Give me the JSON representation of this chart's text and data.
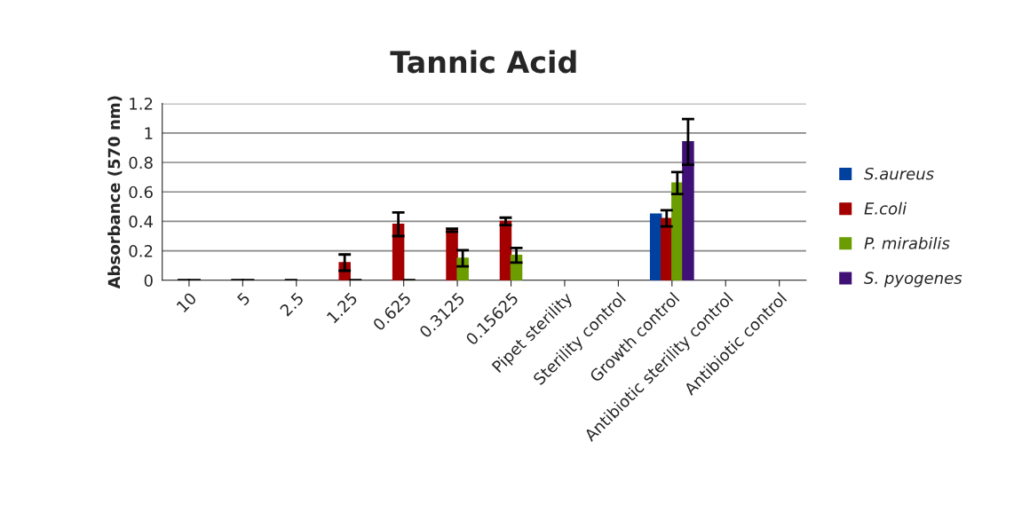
{
  "chart_data": {
    "type": "bar",
    "title": "Tannic Acid",
    "ylabel": "Absorbance (570 nm)",
    "categories": [
      "10",
      "5",
      "2.5",
      "1.25",
      "0.625",
      "0.3125",
      "0.15625",
      "Pipet sterility",
      "Sterility control",
      "Growth control",
      "Antibiotic sterility control",
      "Antibiotic control"
    ],
    "series": [
      {
        "name": "S.aureus",
        "color": "#0041a0",
        "values": [
          null,
          null,
          null,
          null,
          null,
          null,
          null,
          null,
          null,
          0.45,
          null,
          null
        ],
        "errors": [
          null,
          null,
          null,
          null,
          null,
          null,
          null,
          null,
          null,
          null,
          null,
          null
        ]
      },
      {
        "name": "E.coli",
        "color": "#a40000",
        "values": [
          0,
          0,
          0,
          0.12,
          0.38,
          0.34,
          0.4,
          null,
          null,
          0.42,
          null,
          null
        ],
        "errors": [
          0,
          0,
          0,
          0.055,
          0.08,
          0.01,
          0.025,
          null,
          null,
          0.055,
          null,
          null
        ]
      },
      {
        "name": "P. mirabilis",
        "color": "#6b9d00",
        "values": [
          0,
          0,
          null,
          0,
          0,
          0.15,
          0.17,
          null,
          null,
          0.66,
          null,
          null
        ],
        "errors": [
          0,
          0,
          null,
          0,
          0,
          0.055,
          0.05,
          null,
          null,
          0.075,
          null,
          null
        ]
      },
      {
        "name": "S. pyogenes",
        "color": "#3f1075",
        "values": [
          null,
          null,
          null,
          null,
          null,
          null,
          null,
          null,
          null,
          0.94,
          null,
          null
        ],
        "errors": [
          null,
          null,
          null,
          null,
          null,
          null,
          null,
          null,
          null,
          0.155,
          null,
          null
        ]
      }
    ],
    "ylim": [
      0,
      1.2
    ],
    "yticks": [
      0,
      0.2,
      0.4,
      0.6,
      0.8,
      1,
      1.2
    ],
    "grid": "y",
    "legend": "right"
  }
}
